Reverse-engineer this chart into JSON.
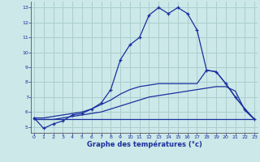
{
  "title": "Graphe des températures (°c)",
  "hours": [
    0,
    1,
    2,
    3,
    4,
    5,
    6,
    7,
    8,
    9,
    10,
    11,
    12,
    13,
    14,
    15,
    16,
    17,
    18,
    19,
    20,
    21,
    22,
    23
  ],
  "temp_curve": [
    5.6,
    4.9,
    5.2,
    5.4,
    5.8,
    5.9,
    6.2,
    6.6,
    7.5,
    9.5,
    10.5,
    11.0,
    12.5,
    13.0,
    12.6,
    13.0,
    12.6,
    11.5,
    8.8,
    8.7,
    7.9,
    7.0,
    6.2,
    5.5
  ],
  "min_line": [
    5.5,
    5.5,
    5.5,
    5.5,
    5.5,
    5.5,
    5.5,
    5.5,
    5.5,
    5.5,
    5.5,
    5.5,
    5.5,
    5.5,
    5.5,
    5.5,
    5.5,
    5.5,
    5.5,
    5.5,
    5.5,
    5.5,
    5.5,
    5.5
  ],
  "max_line": [
    5.6,
    5.6,
    5.7,
    5.8,
    5.9,
    6.0,
    6.2,
    6.5,
    6.8,
    7.2,
    7.5,
    7.7,
    7.8,
    7.9,
    7.9,
    7.9,
    7.9,
    7.9,
    8.8,
    8.7,
    7.9,
    7.0,
    6.2,
    5.5
  ],
  "avg_line": [
    5.5,
    5.5,
    5.5,
    5.6,
    5.7,
    5.8,
    5.9,
    6.0,
    6.2,
    6.4,
    6.6,
    6.8,
    7.0,
    7.1,
    7.2,
    7.3,
    7.4,
    7.5,
    7.6,
    7.7,
    7.7,
    7.4,
    6.1,
    5.5
  ],
  "line_color": "#1a2f9e",
  "bg_color": "#cce8e8",
  "grid_color": "#aacece",
  "tick_color": "#1a2f9e",
  "label_color": "#1a2f9e",
  "ylim": [
    4.6,
    13.4
  ],
  "yticks": [
    5,
    6,
    7,
    8,
    9,
    10,
    11,
    12,
    13
  ],
  "xlim": [
    -0.3,
    23.3
  ],
  "xticks": [
    0,
    1,
    2,
    3,
    4,
    5,
    6,
    7,
    8,
    9,
    10,
    11,
    12,
    13,
    14,
    15,
    16,
    17,
    18,
    19,
    20,
    21,
    22,
    23
  ]
}
